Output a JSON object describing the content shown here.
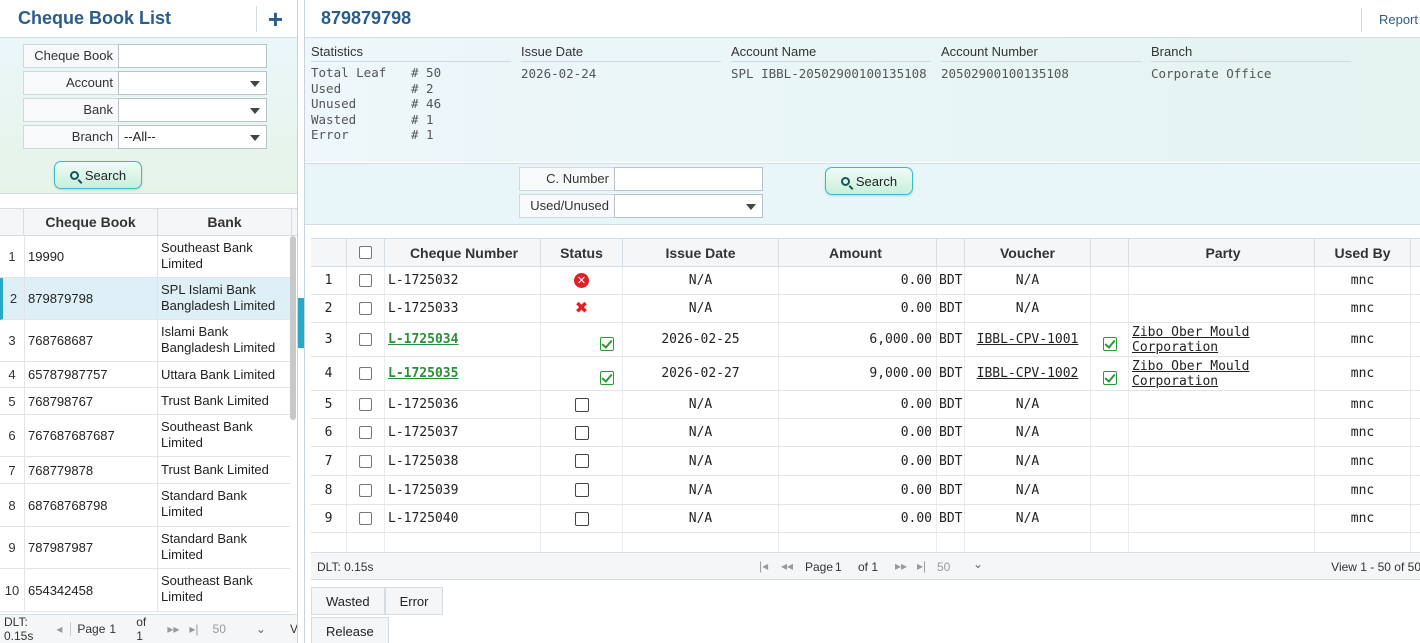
{
  "left": {
    "title": "Cheque Book List",
    "filters": {
      "cheque_book_label": "Cheque Book",
      "cheque_book_value": "",
      "account_label": "Account",
      "account_value": "",
      "bank_label": "Bank",
      "bank_value": "",
      "branch_label": "Branch",
      "branch_value": "--All--",
      "search_label": "Search"
    },
    "columns": [
      "Cheque Book",
      "Bank"
    ],
    "rows": [
      {
        "n": "1",
        "book": "19990",
        "bank": "Southeast Bank Limited"
      },
      {
        "n": "2",
        "book": "879879798",
        "bank": "SPL Islami Bank Bangladesh Limited"
      },
      {
        "n": "3",
        "book": "768768687",
        "bank": "Islami Bank Bangladesh Limited"
      },
      {
        "n": "4",
        "book": "65787987757",
        "bank": "Uttara Bank Limited"
      },
      {
        "n": "5",
        "book": "768798767",
        "bank": "Trust Bank Limited"
      },
      {
        "n": "6",
        "book": "767687687687",
        "bank": "Southeast Bank Limited"
      },
      {
        "n": "7",
        "book": "768779878",
        "bank": "Trust Bank Limited"
      },
      {
        "n": "8",
        "book": "68768768798",
        "bank": "Standard Bank Limited"
      },
      {
        "n": "9",
        "book": "787987987",
        "bank": "Standard Bank Limited"
      },
      {
        "n": "10",
        "book": "654342458",
        "bank": "Southeast Bank Limited"
      }
    ],
    "pager": {
      "dlt": "DLT: 0.15s",
      "page_label": "Page",
      "page": "1",
      "of": "of 1",
      "size": "50",
      "view": "V"
    }
  },
  "right": {
    "title": "879879798",
    "report_label": "Report",
    "stats": {
      "heading": "Statistics",
      "items": [
        {
          "k": "Total Leaf",
          "v": "# 50"
        },
        {
          "k": "Used",
          "v": "# 2"
        },
        {
          "k": "Unused",
          "v": "# 46"
        },
        {
          "k": "Wasted",
          "v": "# 1"
        },
        {
          "k": "Error",
          "v": "# 1"
        }
      ]
    },
    "issue_date_label": "Issue Date",
    "issue_date": "2026-02-24",
    "account_name_label": "Account Name",
    "account_name": "SPL IBBL-20502900100135108",
    "account_number_label": "Account Number",
    "account_number": "20502900100135108",
    "branch_label": "Branch",
    "branch": "Corporate Office",
    "filter": {
      "cnumber_label": "C. Number",
      "cnumber_value": "",
      "used_label": "Used/Unused",
      "used_value": "",
      "search_label": "Search"
    },
    "grid": {
      "columns": [
        "Cheque Number",
        "Status",
        "Issue Date",
        "Amount",
        "Voucher",
        "Party",
        "Used By"
      ],
      "rows": [
        {
          "n": "1",
          "num": "L-1725032",
          "status": "error",
          "date": "N/A",
          "amt": "0.00",
          "cur": "BDT",
          "voucher": "N/A",
          "vstat": "",
          "party": "",
          "used_by": "mnc"
        },
        {
          "n": "2",
          "num": "L-1725033",
          "status": "wasted",
          "date": "N/A",
          "amt": "0.00",
          "cur": "BDT",
          "voucher": "N/A",
          "vstat": "",
          "party": "",
          "used_by": "mnc"
        },
        {
          "n": "3",
          "num": "L-1725034",
          "status": "used",
          "date": "2026-02-25",
          "amt": "6,000.00",
          "cur": "BDT",
          "voucher": "IBBL-CPV-1001",
          "vstat": "ok",
          "party": "Zibo Ober Mould Corporation",
          "used_by": "mnc"
        },
        {
          "n": "4",
          "num": "L-1725035",
          "status": "used",
          "date": "2026-02-27",
          "amt": "9,000.00",
          "cur": "BDT",
          "voucher": "IBBL-CPV-1002",
          "vstat": "ok",
          "party": "Zibo Ober Mould Corporation",
          "used_by": "mnc"
        },
        {
          "n": "5",
          "num": "L-1725036",
          "status": "unused",
          "date": "N/A",
          "amt": "0.00",
          "cur": "BDT",
          "voucher": "N/A",
          "vstat": "",
          "party": "",
          "used_by": "mnc"
        },
        {
          "n": "6",
          "num": "L-1725037",
          "status": "unused",
          "date": "N/A",
          "amt": "0.00",
          "cur": "BDT",
          "voucher": "N/A",
          "vstat": "",
          "party": "",
          "used_by": "mnc"
        },
        {
          "n": "7",
          "num": "L-1725038",
          "status": "unused",
          "date": "N/A",
          "amt": "0.00",
          "cur": "BDT",
          "voucher": "N/A",
          "vstat": "",
          "party": "",
          "used_by": "mnc"
        },
        {
          "n": "8",
          "num": "L-1725039",
          "status": "unused",
          "date": "N/A",
          "amt": "0.00",
          "cur": "BDT",
          "voucher": "N/A",
          "vstat": "",
          "party": "",
          "used_by": "mnc"
        },
        {
          "n": "9",
          "num": "L-1725040",
          "status": "unused",
          "date": "N/A",
          "amt": "0.00",
          "cur": "BDT",
          "voucher": "N/A",
          "vstat": "",
          "party": "",
          "used_by": "mnc"
        }
      ]
    },
    "pager": {
      "dlt": "DLT: 0.15s",
      "page_label": "Page",
      "page": "1",
      "of": "of 1",
      "size": "50",
      "view": "View 1 - 50 of 50"
    },
    "tabs": [
      "Wasted",
      "Error"
    ],
    "release_label": "Release"
  }
}
